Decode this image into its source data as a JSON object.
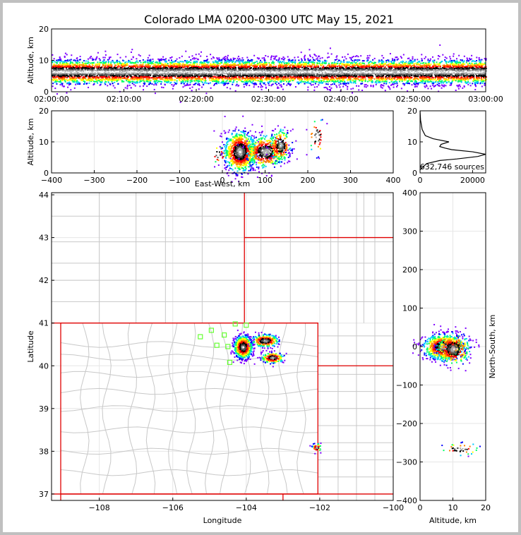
{
  "title": "Colorado LMA 0200-0300 UTC May 15, 2021",
  "colors": {
    "state_border": "#e00000",
    "county_border": "#c8c8c8",
    "grid": "#e6e6e6",
    "network_station": "#66ff33"
  },
  "chart_data": [
    {
      "id": "time-height",
      "type": "heatmap",
      "ylabel": "Altitude, km",
      "ylim": [
        0,
        20
      ],
      "yticks": [
        0,
        10,
        20
      ],
      "xticks": [
        "02:00:00",
        "02:10:00",
        "02:20:00",
        "02:30:00",
        "02:40:00",
        "02:50:00",
        "03:00:00"
      ],
      "xlim_minutes": [
        0,
        60
      ],
      "band_center_km": 6.5,
      "band_halfwidth_km": 4,
      "grid": false
    },
    {
      "id": "east-west-altitude",
      "type": "heatmap",
      "xlabel": "East-West, km",
      "ylabel": "Altitude, km",
      "xlim": [
        -400,
        400
      ],
      "ylim": [
        0,
        20
      ],
      "xticks": [
        -400,
        -300,
        -200,
        -100,
        0,
        100,
        200,
        300,
        400
      ],
      "yticks": [
        0,
        10,
        20
      ],
      "grid": true,
      "clusters": [
        {
          "x": 40,
          "y": 7,
          "sx": 18,
          "sy": 3.2,
          "n": 900
        },
        {
          "x": 100,
          "y": 7,
          "sx": 22,
          "sy": 2.5,
          "n": 500
        },
        {
          "x": 135,
          "y": 9,
          "sx": 12,
          "sy": 2.5,
          "n": 200
        },
        {
          "x": 220,
          "y": 12,
          "sx": 10,
          "sy": 3,
          "n": 40
        },
        {
          "x": -10,
          "y": 6,
          "sx": 10,
          "sy": 1.5,
          "n": 20
        }
      ]
    },
    {
      "id": "altitude-histogram",
      "type": "line",
      "xlim": [
        0,
        25000
      ],
      "ylim": [
        0,
        20
      ],
      "xticks": [
        0,
        20000
      ],
      "yticks": [
        0,
        10,
        20
      ],
      "annotation": "632,746 sources",
      "x": [
        0,
        2500,
        7500,
        14000,
        22000,
        25000,
        20000,
        12000,
        9500,
        7500,
        8000,
        11000,
        5000,
        2000,
        800,
        200,
        0
      ],
      "y": [
        1,
        3,
        4,
        4.5,
        5.3,
        6,
        6.8,
        7.5,
        8,
        8.5,
        9.2,
        10,
        11,
        12,
        14,
        17,
        20
      ],
      "grid": false
    },
    {
      "id": "plan-view",
      "type": "scatter",
      "xlabel": "Longitude",
      "ylabel": "Latitude",
      "xlim": [
        -109.3,
        -100
      ],
      "ylim": [
        36.85,
        44.05
      ],
      "xticks": [
        -108,
        -106,
        -104,
        -102,
        -100
      ],
      "yticks": [
        37,
        38,
        39,
        40,
        41,
        42,
        43,
        44
      ],
      "grid": true,
      "stations": [
        [
          -104.95,
          40.83
        ],
        [
          -104.6,
          40.72
        ],
        [
          -105.25,
          40.68
        ],
        [
          -104.8,
          40.48
        ],
        [
          -104.5,
          40.45
        ],
        [
          -104.45,
          40.08
        ],
        [
          -104.3,
          40.98
        ],
        [
          -104.0,
          40.95
        ]
      ],
      "clusters": [
        {
          "x": -104.1,
          "y": 40.45,
          "sx": 0.12,
          "sy": 0.13,
          "n": 900
        },
        {
          "x": -103.5,
          "y": 40.6,
          "sx": 0.18,
          "sy": 0.07,
          "n": 300
        },
        {
          "x": -103.3,
          "y": 40.2,
          "sx": 0.15,
          "sy": 0.06,
          "n": 200
        },
        {
          "x": -102.1,
          "y": 38.1,
          "sx": 0.06,
          "sy": 0.05,
          "n": 40
        }
      ]
    },
    {
      "id": "altitude-north-south",
      "type": "heatmap",
      "xlabel": "Altitude, km",
      "ylabel": "North-South, km",
      "xlim": [
        0,
        20
      ],
      "ylim": [
        -400,
        400
      ],
      "xticks": [
        0,
        10,
        20
      ],
      "yticks": [
        -400,
        -300,
        -200,
        -100,
        0,
        100,
        200,
        300,
        400
      ],
      "grid": true,
      "clusters": [
        {
          "x": 7,
          "y": 0,
          "sx": 3,
          "sy": 16,
          "n": 900
        },
        {
          "x": 10,
          "y": -5,
          "sx": 2.5,
          "sy": 20,
          "n": 300
        },
        {
          "x": 12,
          "y": -265,
          "sx": 3,
          "sy": 8,
          "n": 40
        }
      ]
    }
  ]
}
